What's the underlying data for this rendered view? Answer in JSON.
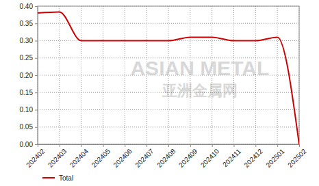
{
  "chart_data": {
    "type": "line",
    "categories": [
      "202402",
      "202403",
      "202404",
      "202405",
      "202406",
      "202407",
      "202408",
      "202409",
      "202410",
      "202411",
      "202412",
      "202501",
      "202502"
    ],
    "series": [
      {
        "name": "Total",
        "color": "#cc0000",
        "values": [
          0.38,
          0.383,
          0.3,
          0.3,
          0.3,
          0.3,
          0.3,
          0.31,
          0.31,
          0.3,
          0.3,
          0.31,
          0.0
        ]
      }
    ],
    "ylim": [
      0,
      0.4
    ],
    "yticks": [
      {
        "value": 0,
        "label": "0.00"
      },
      0.05,
      {
        "value": 0.1,
        "label": "0.10"
      },
      0.15,
      {
        "value": 0.2,
        "label": "0.20"
      },
      0.25,
      {
        "value": 0.3,
        "label": "0.30"
      },
      0.35,
      {
        "value": 0.4,
        "label": "0.40"
      }
    ],
    "annotations": [
      "ASIAN METAL",
      "亚洲金属网"
    ],
    "grid": true,
    "legend": "bottom-left"
  }
}
